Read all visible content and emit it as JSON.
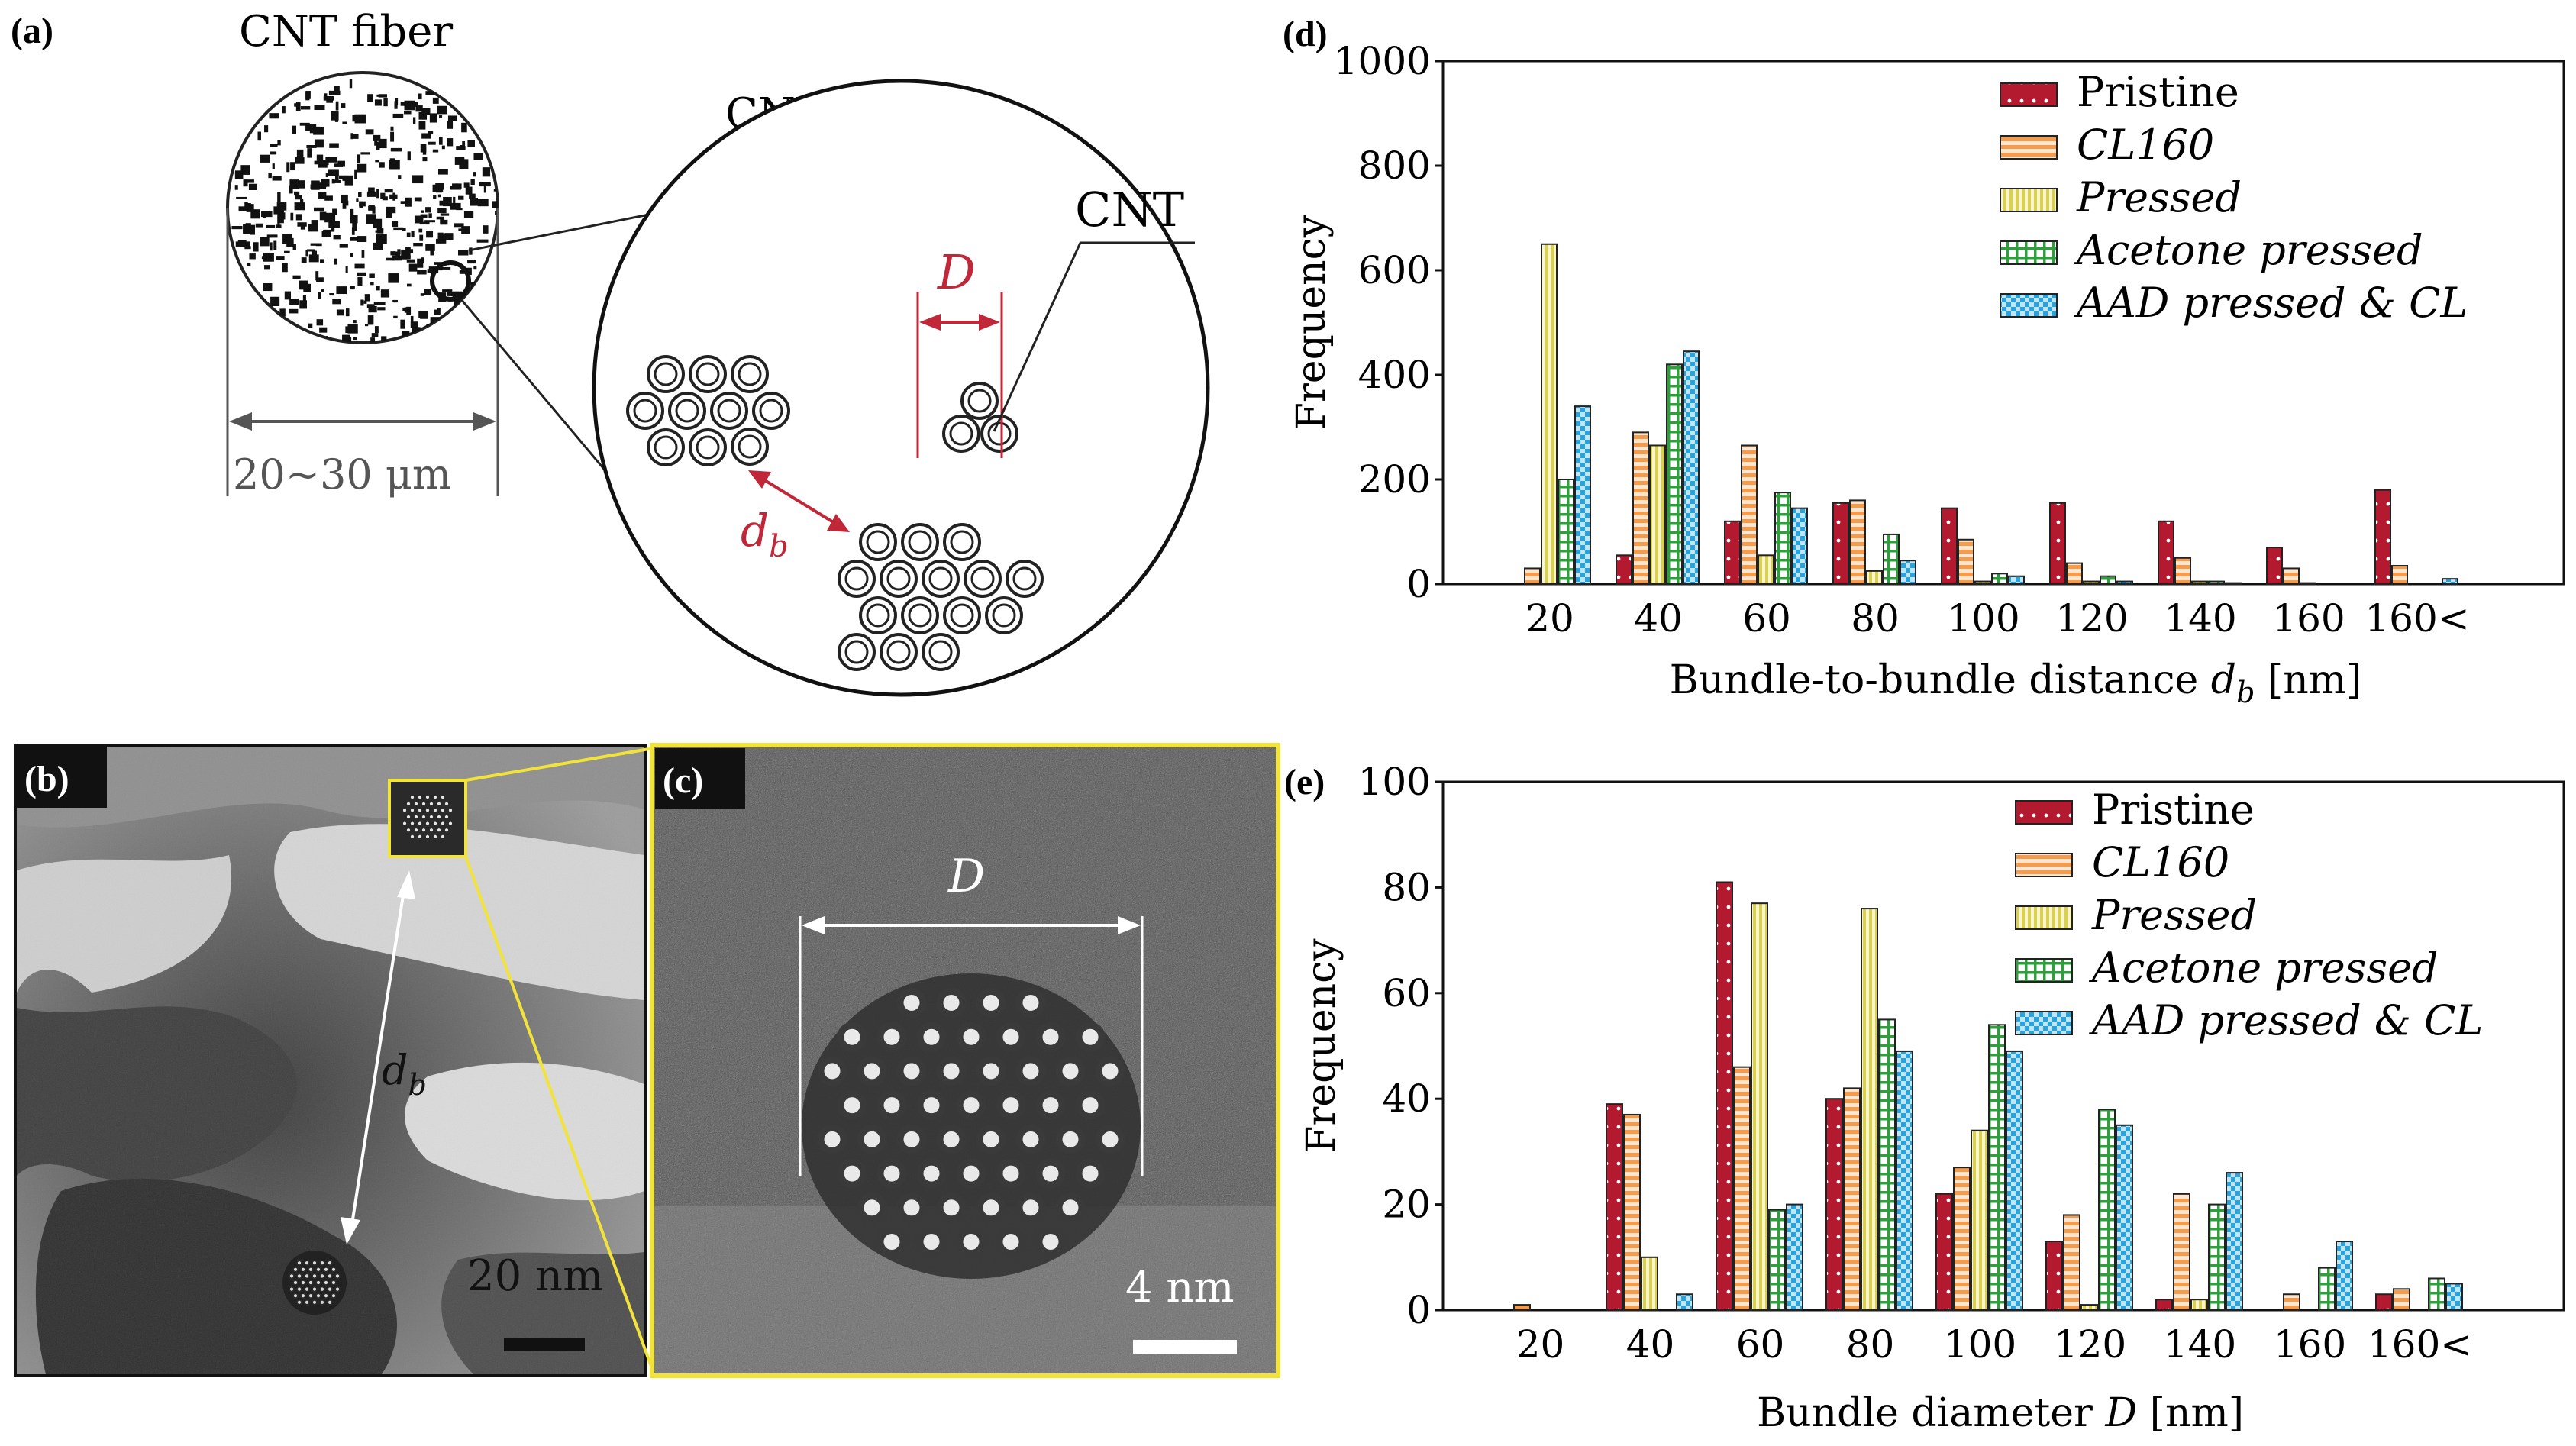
{
  "panel_a": {
    "label": "(a)",
    "fiber_title": "CNT fiber",
    "bundles_title": "CNT bundles",
    "cnt_label": "CNT",
    "D_label": "D",
    "db_label": "d",
    "db_sub": "b",
    "width_label": "20~30 μm",
    "colors": {
      "accent": "#c0283a"
    }
  },
  "panel_b": {
    "label": "(b)",
    "db_label": "d",
    "db_sub": "b",
    "scale": "20 nm"
  },
  "panel_c": {
    "label": "(c)",
    "D_label": "D",
    "scale": "4 nm",
    "border": "#f2e33a"
  },
  "chart_data": [
    {
      "panel": "(d)",
      "type": "bar",
      "ylabel": "Frequency",
      "xlabel_prefix": "Bundle-to-bundle distance ",
      "xlabel_var": "d",
      "xlabel_sub": "b",
      "xlabel_suffix": " [nm]",
      "ylim": [
        0,
        1000
      ],
      "yticks": [
        "0",
        "200",
        "400",
        "600",
        "800",
        "1000"
      ],
      "categories": [
        "20",
        "40",
        "60",
        "80",
        "100",
        "120",
        "140",
        "160",
        "160<"
      ],
      "series": [
        {
          "name": "Pristine",
          "italic": false,
          "color": "#b3192f",
          "values": [
            0,
            55,
            120,
            155,
            145,
            155,
            120,
            70,
            180
          ]
        },
        {
          "name": "CL160",
          "italic": true,
          "color": "#f5a860",
          "values": [
            30,
            290,
            265,
            160,
            85,
            40,
            50,
            30,
            35
          ]
        },
        {
          "name": "Pressed",
          "italic": true,
          "color": "#e8e27a",
          "values": [
            650,
            265,
            55,
            25,
            5,
            5,
            5,
            2,
            0
          ]
        },
        {
          "name": "Acetone pressed",
          "italic": true,
          "color": "#3aa845",
          "values": [
            200,
            420,
            175,
            95,
            20,
            15,
            5,
            0,
            0
          ]
        },
        {
          "name": "AAD pressed & CL",
          "italic": true,
          "color": "#3fb0e0",
          "values": [
            340,
            445,
            145,
            45,
            15,
            5,
            2,
            0,
            10
          ]
        }
      ]
    },
    {
      "panel": "(e)",
      "type": "bar",
      "ylabel": "Frequency",
      "xlabel_prefix": "Bundle diameter ",
      "xlabel_var": "D",
      "xlabel_sub": "",
      "xlabel_suffix": " [nm]",
      "ylim": [
        0,
        100
      ],
      "yticks": [
        "0",
        "20",
        "40",
        "60",
        "80",
        "100"
      ],
      "categories": [
        "20",
        "40",
        "60",
        "80",
        "100",
        "120",
        "140",
        "160",
        "160<"
      ],
      "series": [
        {
          "name": "Pristine",
          "italic": false,
          "color": "#b3192f",
          "values": [
            0,
            39,
            81,
            40,
            22,
            13,
            2,
            0,
            3
          ]
        },
        {
          "name": "CL160",
          "italic": true,
          "color": "#f5a860",
          "values": [
            1,
            37,
            46,
            42,
            27,
            18,
            22,
            3,
            4
          ]
        },
        {
          "name": "Pressed",
          "italic": true,
          "color": "#e8e27a",
          "values": [
            0,
            10,
            77,
            76,
            34,
            1,
            2,
            0,
            0
          ]
        },
        {
          "name": "Acetone pressed",
          "italic": true,
          "color": "#3aa845",
          "values": [
            0,
            0,
            19,
            55,
            54,
            38,
            20,
            8,
            6
          ]
        },
        {
          "name": "AAD pressed & CL",
          "italic": true,
          "color": "#3fb0e0",
          "values": [
            0,
            3,
            20,
            49,
            49,
            35,
            26,
            13,
            5
          ]
        }
      ]
    }
  ]
}
